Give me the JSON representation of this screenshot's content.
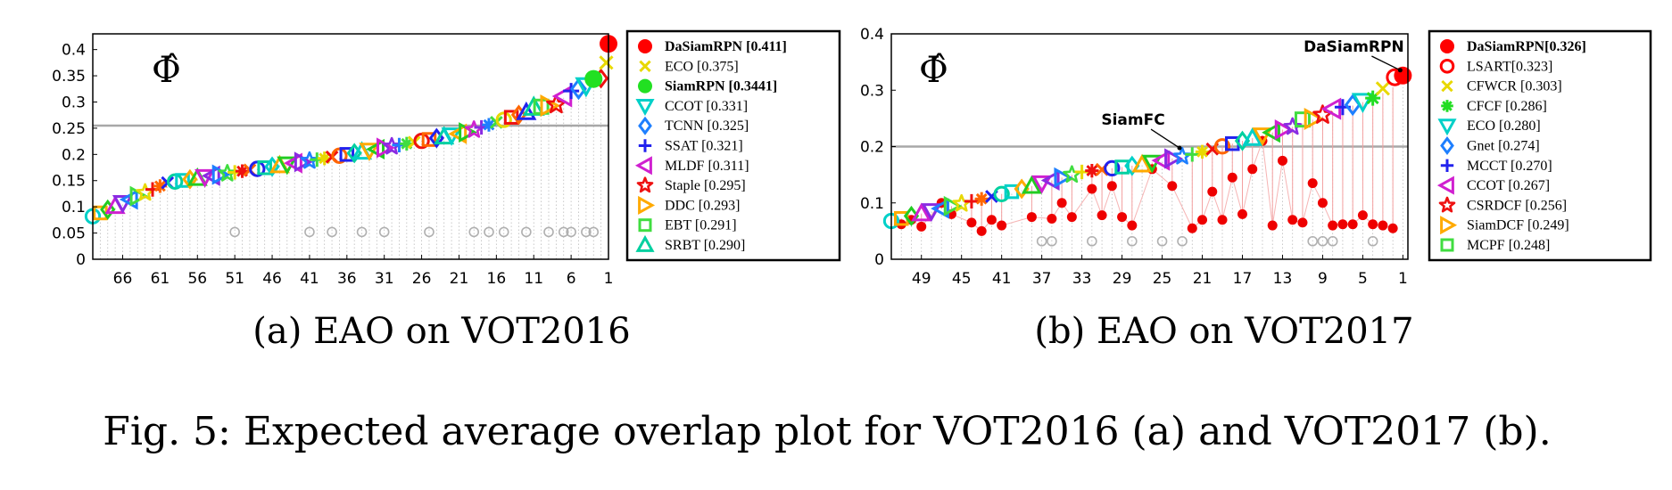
{
  "caption": "Fig. 5: Expected average overlap plot for VOT2016 (a) and VOT2017 (b).",
  "chart_data": [
    {
      "type": "scatter",
      "title": "",
      "subcaption": "(a) EAO on VOT2016",
      "symbol": "Φ̂",
      "xlabel": "",
      "ylabel": "",
      "xlim": [
        70,
        1
      ],
      "ylim": [
        0,
        0.43
      ],
      "xticks": [
        "66",
        "61",
        "56",
        "51",
        "46",
        "41",
        "36",
        "31",
        "26",
        "21",
        "16",
        "11",
        "6",
        "1"
      ],
      "yticks": [
        "0",
        "0.05",
        "0.1",
        "0.15",
        "0.2",
        "0.25",
        "0.3",
        "0.35",
        "0.4"
      ],
      "threshold": 0.255,
      "grey_markers": {
        "rank": [
          51,
          41,
          38,
          34,
          31,
          25,
          19,
          17,
          15,
          12,
          9,
          7,
          6,
          4,
          3
        ],
        "value": 0.052
      },
      "trend": [
        {
          "rank": 70,
          "eao": 0.082
        },
        {
          "rank": 60,
          "eao": 0.146
        },
        {
          "rank": 50,
          "eao": 0.168
        },
        {
          "rank": 40,
          "eao": 0.19
        },
        {
          "rank": 30,
          "eao": 0.215
        },
        {
          "rank": 20,
          "eao": 0.242
        },
        {
          "rank": 10,
          "eao": 0.29
        },
        {
          "rank": 5,
          "eao": 0.32
        },
        {
          "rank": 2,
          "eao": 0.345
        }
      ],
      "legend_position": "outside-right",
      "series": [
        {
          "label": "DaSiamRPN [0.411]",
          "name": "DaSiamRPN",
          "score": "0.411",
          "bold": true,
          "marker": "filled-circle",
          "color": "#ff0000",
          "rank": 1,
          "eao": 0.411
        },
        {
          "label": "ECO [0.375]",
          "name": "ECO",
          "score": "0.375",
          "bold": false,
          "marker": "x",
          "color": "#e8d800",
          "rank": 1.3,
          "eao": 0.375
        },
        {
          "label": "SiamRPN [0.3441]",
          "name": "SiamRPN",
          "score": "0.3441",
          "bold": true,
          "marker": "filled-circle",
          "color": "#22e022",
          "rank": 3,
          "eao": 0.344
        },
        {
          "label": "CCOT [0.331]",
          "name": "CCOT",
          "score": "0.331",
          "bold": false,
          "marker": "triangle-down",
          "color": "#00d0c8",
          "rank": 4,
          "eao": 0.331
        },
        {
          "label": "TCNN [0.325]",
          "name": "TCNN",
          "score": "0.325",
          "bold": false,
          "marker": "diamond",
          "color": "#1e7fff",
          "rank": 5,
          "eao": 0.325
        },
        {
          "label": "SSAT [0.321]",
          "name": "SSAT",
          "score": "0.321",
          "bold": false,
          "marker": "plus",
          "color": "#2222ee",
          "rank": 6,
          "eao": 0.321
        },
        {
          "label": "MLDF [0.311]",
          "name": "MLDF",
          "score": "0.311",
          "bold": false,
          "marker": "triangle-left",
          "color": "#d020d0",
          "rank": 7,
          "eao": 0.311
        },
        {
          "label": "Staple [0.295]",
          "name": "Staple",
          "score": "0.295",
          "bold": false,
          "marker": "star",
          "color": "#ee1010",
          "rank": 8,
          "eao": 0.295
        },
        {
          "label": "DDC [0.293]",
          "name": "DDC",
          "score": "0.293",
          "bold": false,
          "marker": "triangle-right",
          "color": "#ffaa00",
          "rank": 9,
          "eao": 0.293
        },
        {
          "label": "EBT [0.291]",
          "name": "EBT",
          "score": "0.291",
          "bold": false,
          "marker": "square",
          "color": "#40dd40",
          "rank": 10,
          "eao": 0.291
        },
        {
          "label": "SRBT [0.290]",
          "name": "SRBT",
          "score": "0.290",
          "bold": false,
          "marker": "triangle-up",
          "color": "#00d0a0",
          "rank": 11,
          "eao": 0.29
        }
      ]
    },
    {
      "type": "scatter",
      "title": "",
      "subcaption": "(b) EAO on VOT2017",
      "symbol": "Φ̂",
      "xlabel": "",
      "ylabel": "",
      "xlim": [
        52,
        0.5
      ],
      "ylim": [
        0,
        0.4
      ],
      "xticks": [
        "49",
        "45",
        "41",
        "37",
        "33",
        "29",
        "25",
        "21",
        "17",
        "13",
        "9",
        "5",
        "1"
      ],
      "yticks": [
        "0",
        "0.1",
        "0.2",
        "0.3",
        "0.4"
      ],
      "threshold": 0.2,
      "annotations": [
        {
          "text": "DaSiamRPN",
          "rank": 1,
          "eao": 0.326
        },
        {
          "text": "SiamFC",
          "rank": 23,
          "eao": 0.188
        }
      ],
      "grey_markers": {
        "rank": [
          37,
          36,
          32,
          28,
          25,
          23,
          10,
          9,
          8,
          4
        ],
        "value": 0.032
      },
      "red_points": [
        {
          "rank": 51,
          "eao": 0.062
        },
        {
          "rank": 50,
          "eao": 0.07
        },
        {
          "rank": 49,
          "eao": 0.058
        },
        {
          "rank": 47,
          "eao": 0.1
        },
        {
          "rank": 46,
          "eao": 0.08
        },
        {
          "rank": 44,
          "eao": 0.065
        },
        {
          "rank": 43,
          "eao": 0.05
        },
        {
          "rank": 42,
          "eao": 0.07
        },
        {
          "rank": 41,
          "eao": 0.06
        },
        {
          "rank": 38,
          "eao": 0.075
        },
        {
          "rank": 36,
          "eao": 0.072
        },
        {
          "rank": 35,
          "eao": 0.1
        },
        {
          "rank": 34,
          "eao": 0.075
        },
        {
          "rank": 32,
          "eao": 0.125
        },
        {
          "rank": 31,
          "eao": 0.078
        },
        {
          "rank": 30,
          "eao": 0.13
        },
        {
          "rank": 29,
          "eao": 0.075
        },
        {
          "rank": 28,
          "eao": 0.06
        },
        {
          "rank": 26,
          "eao": 0.16
        },
        {
          "rank": 24,
          "eao": 0.13
        },
        {
          "rank": 22,
          "eao": 0.055
        },
        {
          "rank": 21,
          "eao": 0.07
        },
        {
          "rank": 20,
          "eao": 0.12
        },
        {
          "rank": 19,
          "eao": 0.07
        },
        {
          "rank": 18,
          "eao": 0.145
        },
        {
          "rank": 17,
          "eao": 0.08
        },
        {
          "rank": 16,
          "eao": 0.16
        },
        {
          "rank": 15,
          "eao": 0.21
        },
        {
          "rank": 14,
          "eao": 0.06
        },
        {
          "rank": 13,
          "eao": 0.175
        },
        {
          "rank": 12,
          "eao": 0.07
        },
        {
          "rank": 11,
          "eao": 0.065
        },
        {
          "rank": 10,
          "eao": 0.135
        },
        {
          "rank": 9,
          "eao": 0.1
        },
        {
          "rank": 8,
          "eao": 0.06
        },
        {
          "rank": 7,
          "eao": 0.062
        },
        {
          "rank": 6,
          "eao": 0.062
        },
        {
          "rank": 5,
          "eao": 0.078
        },
        {
          "rank": 4,
          "eao": 0.062
        },
        {
          "rank": 3,
          "eao": 0.06
        },
        {
          "rank": 2,
          "eao": 0.055
        }
      ],
      "trend": [
        {
          "rank": 52,
          "eao": 0.068
        },
        {
          "rank": 47,
          "eao": 0.09
        },
        {
          "rank": 40,
          "eao": 0.12
        },
        {
          "rank": 33,
          "eao": 0.155
        },
        {
          "rank": 27,
          "eao": 0.168
        },
        {
          "rank": 22,
          "eao": 0.186
        },
        {
          "rank": 17,
          "eao": 0.21
        },
        {
          "rank": 12,
          "eao": 0.235
        },
        {
          "rank": 8,
          "eao": 0.26
        },
        {
          "rank": 4,
          "eao": 0.285
        },
        {
          "rank": 2,
          "eao": 0.305
        }
      ],
      "legend_position": "outside-right",
      "series": [
        {
          "label": "DaSiamRPN[0.326]",
          "name": "DaSiamRPN",
          "score": "0.326",
          "bold": true,
          "marker": "filled-circle",
          "color": "#ff0000",
          "rank": 1,
          "eao": 0.326
        },
        {
          "label": "LSART[0.323]",
          "name": "LSART",
          "score": "0.323",
          "bold": false,
          "marker": "circle",
          "color": "#ff0000",
          "rank": 1.8,
          "eao": 0.323
        },
        {
          "label": "CFWCR [0.303]",
          "name": "CFWCR",
          "score": "0.303",
          "bold": false,
          "marker": "x",
          "color": "#e8d800",
          "rank": 3,
          "eao": 0.303
        },
        {
          "label": "CFCF [0.286]",
          "name": "CFCF",
          "score": "0.286",
          "bold": false,
          "marker": "asterisk",
          "color": "#22dd22",
          "rank": 4,
          "eao": 0.286
        },
        {
          "label": "ECO [0.280]",
          "name": "ECO",
          "score": "0.280",
          "bold": false,
          "marker": "triangle-down",
          "color": "#00d0c8",
          "rank": 5,
          "eao": 0.28
        },
        {
          "label": "Gnet [0.274]",
          "name": "Gnet",
          "score": "0.274",
          "bold": false,
          "marker": "diamond",
          "color": "#1e7fff",
          "rank": 6,
          "eao": 0.274
        },
        {
          "label": "MCCT [0.270]",
          "name": "MCCT",
          "score": "0.270",
          "bold": false,
          "marker": "plus",
          "color": "#2222ee",
          "rank": 7,
          "eao": 0.27
        },
        {
          "label": "CCOT [0.267]",
          "name": "CCOT",
          "score": "0.267",
          "bold": false,
          "marker": "triangle-left",
          "color": "#d020d0",
          "rank": 8,
          "eao": 0.267
        },
        {
          "label": "CSRDCF [0.256]",
          "name": "CSRDCF",
          "score": "0.256",
          "bold": false,
          "marker": "star",
          "color": "#ee1010",
          "rank": 9,
          "eao": 0.256
        },
        {
          "label": "SiamDCF [0.249]",
          "name": "SiamDCF",
          "score": "0.249",
          "bold": false,
          "marker": "triangle-right",
          "color": "#ffaa00",
          "rank": 10,
          "eao": 0.249
        },
        {
          "label": "MCPF [0.248]",
          "name": "MCPF",
          "score": "0.248",
          "bold": false,
          "marker": "square",
          "color": "#40dd40",
          "rank": 11,
          "eao": 0.248
        }
      ]
    }
  ]
}
